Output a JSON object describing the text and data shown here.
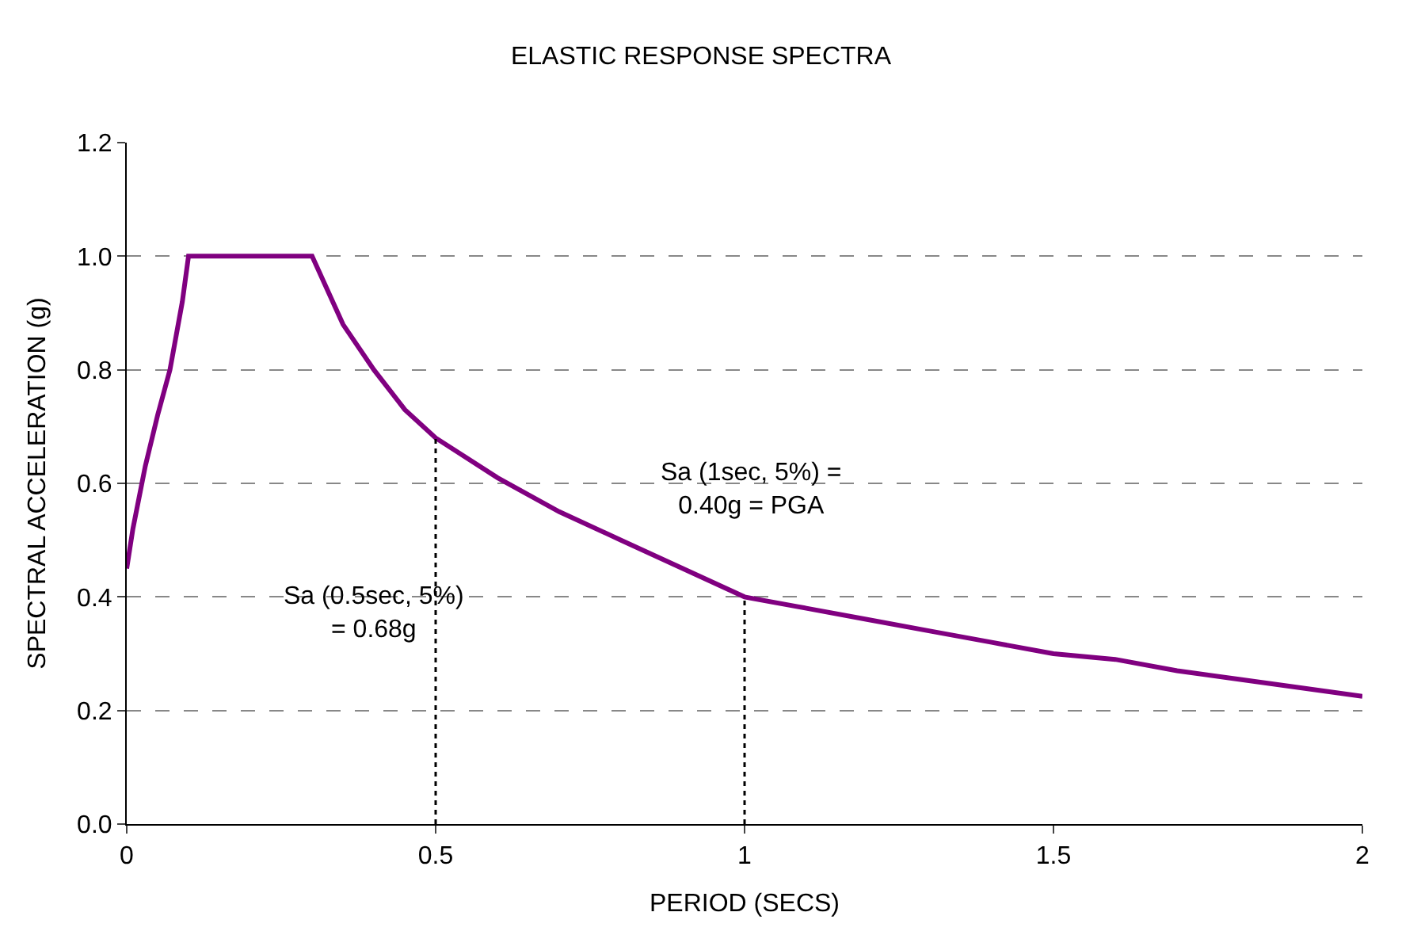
{
  "chart_data": {
    "type": "line",
    "title": "ELASTIC RESPONSE SPECTRA",
    "xlabel": "PERIOD (SECS)",
    "ylabel": "SPECTRAL ACCELERATION (g)",
    "xlim": [
      0,
      2
    ],
    "xticks": [
      0,
      0.5,
      1,
      1.5,
      2
    ],
    "ylim": [
      0,
      1.2
    ],
    "yticks": [
      {
        "value": 0,
        "label": "0.0"
      },
      {
        "value": 0.2,
        "label": "0.2"
      },
      {
        "value": 0.4,
        "label": "0.4"
      },
      {
        "value": 0.6,
        "label": "0.6"
      },
      {
        "value": 0.8,
        "label": "0.8"
      },
      {
        "value": 1,
        "label": "1.0"
      },
      {
        "value": 1.2,
        "label": "1.2"
      }
    ],
    "grid": "y",
    "marker": "none",
    "series": [
      {
        "color": "#800080",
        "line_style": "solid",
        "x": [
          0,
          0.01,
          0.03,
          0.05,
          0.07,
          0.09,
          0.1,
          0.3,
          0.35,
          0.4,
          0.45,
          0.5,
          0.6,
          0.7,
          0.8,
          0.9,
          1.0,
          1.1,
          1.2,
          1.3,
          1.4,
          1.5,
          1.6,
          1.7,
          1.8,
          1.9,
          2.0
        ],
        "values": [
          0.45,
          0.52,
          0.63,
          0.72,
          0.8,
          0.92,
          1.0,
          1.0,
          0.88,
          0.8,
          0.73,
          0.68,
          0.61,
          0.55,
          0.5,
          0.45,
          0.4,
          0.38,
          0.36,
          0.34,
          0.32,
          0.3,
          0.29,
          0.27,
          0.255,
          0.24,
          0.225
        ]
      },
      {
        "color": "#000000",
        "line_style": "dotted",
        "x": [
          0.5,
          0.5
        ],
        "values": [
          0,
          0.68
        ]
      },
      {
        "color": "#000000",
        "line_style": "dotted",
        "x": [
          1,
          1
        ],
        "values": [
          0,
          0.4
        ]
      }
    ],
    "annotations": [
      "Sa (0.5sec, 5%)\n= 0.68g",
      "Sa (1sec, 5%) =\n0.40g = PGA"
    ]
  }
}
